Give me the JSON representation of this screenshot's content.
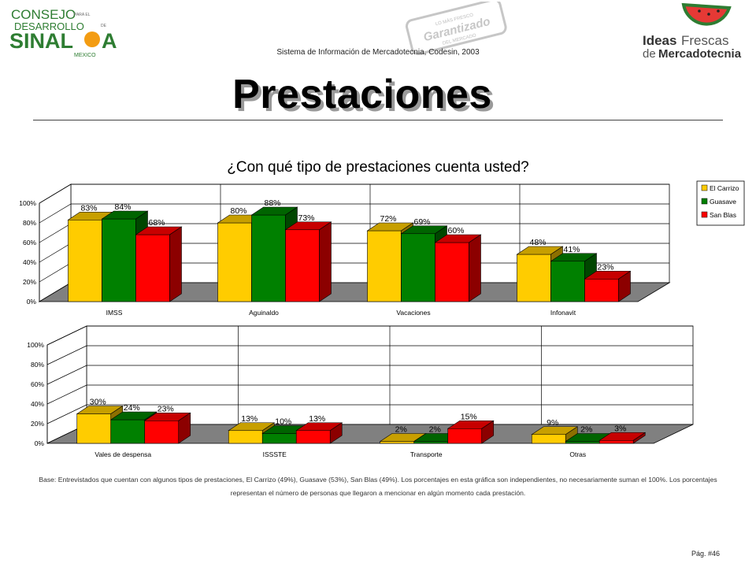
{
  "header": {
    "logo_left": {
      "line1": "CONSEJO",
      "line1_small": "PARA EL",
      "line2": "DESARROLLO",
      "line2_small": "DE",
      "line3a": "SINAL",
      "line3b": "A",
      "line4": "MEXICO"
    },
    "logo_center": {
      "line1": "LO MÁS FRESCO",
      "line2": "Garantizado",
      "line3": "DEL MERCADO"
    },
    "logo_right": {
      "line1a": "Ideas",
      "line1b": "Frescas",
      "line2a": "de",
      "line2b": "Mercadotecnia"
    },
    "system_caption": "Sistema de Información de Mercadotecnia, Codesin, 2003"
  },
  "page_title": "Prestaciones",
  "question": "¿Con qué tipo de prestaciones cuenta usted?",
  "base_note": {
    "line1": "Base: Entrevistados que cuentan con algunos tipos de prestaciones, El Carrizo (49%), Guasave (53%), San Blas (49%). Los porcentajes en esta gráfica son independientes, no necesariamente suman el 100%. Los porcentajes",
    "line2": "representan el número de personas que llegaron a mencionar en algún momento cada prestación."
  },
  "page_number": "Pág. #46",
  "colors": {
    "El Carrizo": "#FFCC00",
    "Guasave": "#008000",
    "San Blas": "#FF0000",
    "floor": "#808080"
  },
  "chart_data": [
    {
      "type": "bar",
      "categories": [
        "IMSS",
        "Aguinaldo",
        "Vacaciones",
        "Infonavit"
      ],
      "series": [
        {
          "name": "El Carrizo",
          "values": [
            83,
            80,
            72,
            48
          ],
          "labels": [
            "83%",
            "80%",
            "72%",
            "48%"
          ]
        },
        {
          "name": "Guasave",
          "values": [
            84,
            88,
            69,
            41
          ],
          "labels": [
            "84%",
            "88%",
            "69%",
            "41%"
          ]
        },
        {
          "name": "San Blas",
          "values": [
            68,
            73,
            60,
            23
          ],
          "labels": [
            "68%",
            "73%",
            "60%",
            "23%"
          ]
        }
      ],
      "y_ticks": [
        "0%",
        "20%",
        "40%",
        "60%",
        "80%",
        "100%"
      ],
      "ylim": [
        0,
        100
      ],
      "grid": true,
      "legend": "right"
    },
    {
      "type": "bar",
      "categories": [
        "Vales de despensa",
        "ISSSTE",
        "Transporte",
        "Otras"
      ],
      "series": [
        {
          "name": "El Carrizo",
          "values": [
            30,
            13,
            2,
            9
          ],
          "labels": [
            "30%",
            "13%",
            "2%",
            "9%"
          ]
        },
        {
          "name": "Guasave",
          "values": [
            24,
            10,
            2,
            2
          ],
          "labels": [
            "24%",
            "10%",
            "2%",
            "2%"
          ]
        },
        {
          "name": "San Blas",
          "values": [
            23,
            13,
            15,
            3
          ],
          "labels": [
            "23%",
            "13%",
            "15%",
            "3%"
          ]
        }
      ],
      "y_ticks": [
        "0%",
        "20%",
        "40%",
        "60%",
        "80%",
        "100%"
      ],
      "ylim": [
        0,
        100
      ],
      "grid": true
    }
  ]
}
